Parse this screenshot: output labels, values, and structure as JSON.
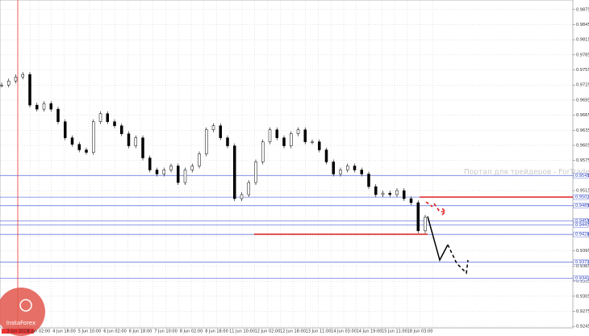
{
  "chart_data": {
    "type": "candlestick",
    "watermark": "Портал для трейдеров - ForTrader.org",
    "logo": "InstaForex",
    "x_labels": [
      "3 Jun 2022",
      "4 Jun 02:00",
      "4 Jun 18:00",
      "5 Jun 10:00",
      "6 Jun 02:00",
      "6 Jun 18:00",
      "7 Jun 10:00",
      "8 Jun 02:00",
      "8 Jun 18:00",
      "11 Jun 10:00",
      "12 Jun 02:00",
      "12 Jun 18:00",
      "13 Jun 11:00",
      "14 Jun 03:00",
      "14 Jun 19:00",
      "15 Jun 11:00",
      "18 Jun 03:00"
    ],
    "values": [
      0.9725,
      0.9733,
      0.9741,
      0.9746,
      0.9685,
      0.9677,
      0.9688,
      0.9677,
      0.9652,
      0.962,
      0.9607,
      0.9596,
      0.9591,
      0.9652,
      0.9668,
      0.9652,
      0.9644,
      0.9628,
      0.9604,
      0.962,
      0.958,
      0.9556,
      0.9548,
      0.9556,
      0.9564,
      0.9531,
      0.9556,
      0.9564,
      0.9588,
      0.9636,
      0.9644,
      0.962,
      0.9604,
      0.9499,
      0.9507,
      0.9531,
      0.9572,
      0.9612,
      0.9636,
      0.962,
      0.9604,
      0.9628,
      0.9636,
      0.9612,
      0.9612,
      0.9596,
      0.9572,
      0.9548,
      0.9556,
      0.9564,
      0.9556,
      0.9548,
      0.9523,
      0.9507,
      0.951,
      0.9507,
      0.9515,
      0.9499,
      0.9491,
      0.9435,
      0.9462
    ],
    "color": "#000000",
    "ylim": [
      0.9242,
      0.9894
    ],
    "yticks": [
      0.9875,
      0.9845,
      0.9815,
      0.9785,
      0.9755,
      0.9725,
      0.9695,
      0.9665,
      0.9635,
      0.9605,
      0.9575,
      0.9545,
      0.9515,
      0.9485,
      0.9455,
      0.9425,
      0.9395,
      0.9365,
      0.9335,
      0.9305,
      0.9275,
      0.9245
    ],
    "levels": [
      0.9545,
      0.9502,
      0.9485,
      0.9455,
      0.9447,
      0.9428,
      0.9373,
      0.9341
    ],
    "level_color": "#6f7fe0",
    "grid": true
  }
}
